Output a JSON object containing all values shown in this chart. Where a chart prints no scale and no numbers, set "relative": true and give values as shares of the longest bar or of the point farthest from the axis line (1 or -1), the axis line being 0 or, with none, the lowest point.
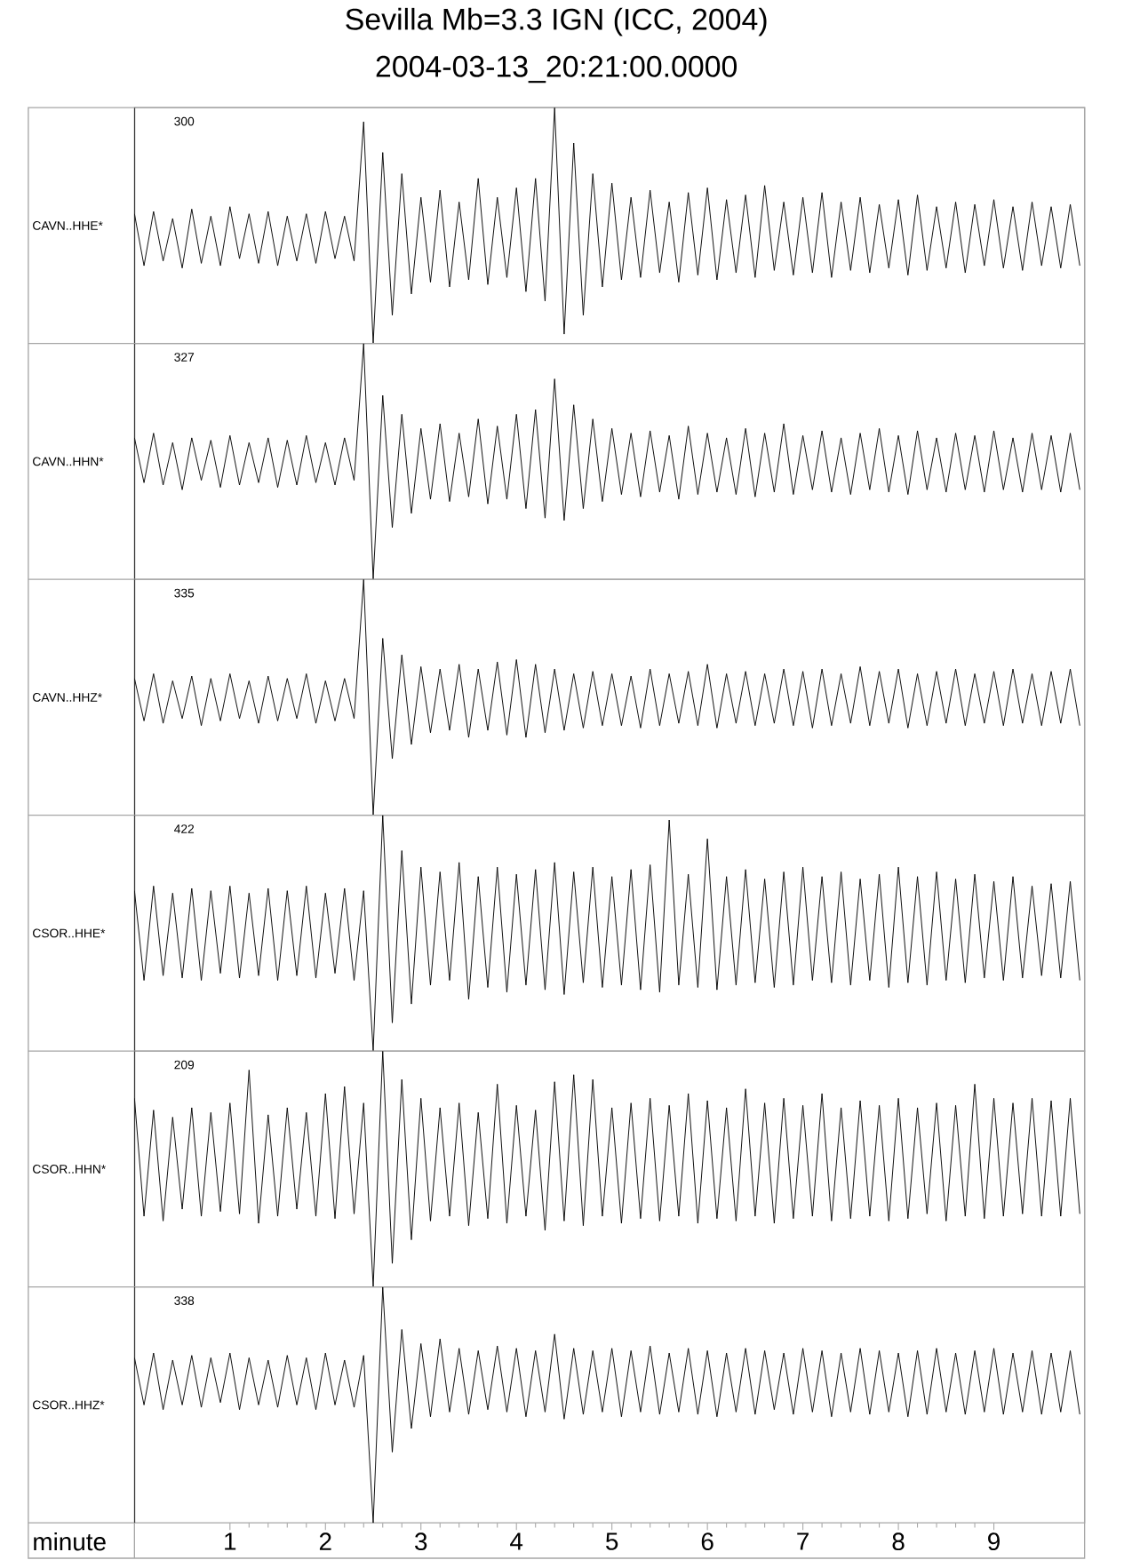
{
  "chart_data": [
    {
      "type": "line",
      "relative": true,
      "title": "Sevilla Mb=3.3 IGN (ICC, 2004)",
      "subtitle": "2004-03-13_20:21:00.0000",
      "ylabel": "CAVN..HHE*",
      "annotations": [
        "300"
      ],
      "color": "#000000",
      "xlim": [
        0,
        9.95
      ],
      "tick_labels": false,
      "x": [
        0,
        0.1,
        0.2,
        0.3,
        0.4,
        0.5,
        0.6,
        0.7,
        0.8,
        0.9,
        1,
        1.1,
        1.2,
        1.3,
        1.4,
        1.5,
        1.6,
        1.7,
        1.8,
        1.9,
        2,
        2.1,
        2.2,
        2.3,
        2.4,
        2.5,
        2.6,
        2.7,
        2.8,
        2.9,
        3,
        3.1,
        3.2,
        3.3,
        3.4,
        3.5,
        3.6,
        3.7,
        3.8,
        3.9,
        4,
        4.1,
        4.2,
        4.3,
        4.4,
        4.5,
        4.6,
        4.7,
        4.8,
        4.9,
        5,
        5.1,
        5.2,
        5.3,
        5.4,
        5.5,
        5.6,
        5.7,
        5.8,
        5.9,
        6,
        6.1,
        6.2,
        6.3,
        6.4,
        6.5,
        6.6,
        6.7,
        6.8,
        6.9,
        7,
        7.1,
        7.2,
        7.3,
        7.4,
        7.5,
        7.6,
        7.7,
        7.8,
        7.9,
        8,
        8.1,
        8.2,
        8.3,
        8.4,
        8.5,
        8.6,
        8.7,
        8.8,
        8.9,
        9,
        9.1,
        9.2,
        9.3,
        9.4,
        9.5,
        9.6,
        9.7,
        9.8,
        9.9
      ],
      "values": [
        0.55,
        0.33,
        0.56,
        0.35,
        0.53,
        0.32,
        0.57,
        0.34,
        0.54,
        0.33,
        0.58,
        0.36,
        0.55,
        0.34,
        0.56,
        0.33,
        0.54,
        0.35,
        0.55,
        0.34,
        0.56,
        0.36,
        0.54,
        0.35,
        0.94,
        0.0,
        0.81,
        0.12,
        0.72,
        0.21,
        0.62,
        0.26,
        0.65,
        0.24,
        0.6,
        0.27,
        0.7,
        0.25,
        0.62,
        0.28,
        0.66,
        0.22,
        0.7,
        0.18,
        1.0,
        0.04,
        0.85,
        0.12,
        0.72,
        0.24,
        0.68,
        0.27,
        0.62,
        0.28,
        0.65,
        0.3,
        0.6,
        0.26,
        0.64,
        0.29,
        0.66,
        0.27,
        0.61,
        0.3,
        0.63,
        0.28,
        0.67,
        0.31,
        0.6,
        0.29,
        0.62,
        0.3,
        0.64,
        0.28,
        0.6,
        0.31,
        0.62,
        0.3,
        0.59,
        0.32,
        0.61,
        0.29,
        0.63,
        0.31,
        0.58,
        0.32,
        0.6,
        0.3,
        0.59,
        0.33,
        0.61,
        0.32,
        0.58,
        0.31,
        0.6,
        0.33,
        0.58,
        0.32,
        0.59,
        0.33
      ]
    },
    {
      "type": "line",
      "relative": true,
      "ylabel": "CAVN..HHN*",
      "annotations": [
        "327"
      ],
      "color": "#000000",
      "xlim": [
        0,
        9.95
      ],
      "tick_labels": false,
      "x": [
        0,
        0.1,
        0.2,
        0.3,
        0.4,
        0.5,
        0.6,
        0.7,
        0.8,
        0.9,
        1,
        1.1,
        1.2,
        1.3,
        1.4,
        1.5,
        1.6,
        1.7,
        1.8,
        1.9,
        2,
        2.1,
        2.2,
        2.3,
        2.4,
        2.5,
        2.6,
        2.7,
        2.8,
        2.9,
        3,
        3.1,
        3.2,
        3.3,
        3.4,
        3.5,
        3.6,
        3.7,
        3.8,
        3.9,
        4,
        4.1,
        4.2,
        4.3,
        4.4,
        4.5,
        4.6,
        4.7,
        4.8,
        4.9,
        5,
        5.1,
        5.2,
        5.3,
        5.4,
        5.5,
        5.6,
        5.7,
        5.8,
        5.9,
        6,
        6.1,
        6.2,
        6.3,
        6.4,
        6.5,
        6.6,
        6.7,
        6.8,
        6.9,
        7,
        7.1,
        7.2,
        7.3,
        7.4,
        7.5,
        7.6,
        7.7,
        7.8,
        7.9,
        8,
        8.1,
        8.2,
        8.3,
        8.4,
        8.5,
        8.6,
        8.7,
        8.8,
        8.9,
        9,
        9.1,
        9.2,
        9.3,
        9.4,
        9.5,
        9.6,
        9.7,
        9.8,
        9.9
      ],
      "values": [
        0.6,
        0.41,
        0.62,
        0.4,
        0.58,
        0.38,
        0.6,
        0.42,
        0.59,
        0.39,
        0.61,
        0.4,
        0.58,
        0.41,
        0.6,
        0.39,
        0.59,
        0.4,
        0.61,
        0.41,
        0.58,
        0.4,
        0.6,
        0.42,
        1.0,
        0.0,
        0.78,
        0.22,
        0.7,
        0.28,
        0.64,
        0.34,
        0.66,
        0.33,
        0.62,
        0.35,
        0.68,
        0.32,
        0.65,
        0.34,
        0.7,
        0.3,
        0.72,
        0.26,
        0.85,
        0.25,
        0.74,
        0.3,
        0.68,
        0.33,
        0.64,
        0.36,
        0.62,
        0.35,
        0.63,
        0.37,
        0.61,
        0.34,
        0.65,
        0.36,
        0.62,
        0.37,
        0.6,
        0.36,
        0.64,
        0.35,
        0.62,
        0.37,
        0.66,
        0.36,
        0.61,
        0.38,
        0.63,
        0.37,
        0.6,
        0.36,
        0.62,
        0.38,
        0.64,
        0.37,
        0.61,
        0.36,
        0.63,
        0.38,
        0.6,
        0.37,
        0.62,
        0.38,
        0.61,
        0.37,
        0.63,
        0.38,
        0.6,
        0.37,
        0.62,
        0.38,
        0.61,
        0.37,
        0.62,
        0.38
      ]
    },
    {
      "type": "line",
      "relative": true,
      "ylabel": "CAVN..HHZ*",
      "annotations": [
        "335"
      ],
      "color": "#000000",
      "xlim": [
        0,
        9.95
      ],
      "tick_labels": false,
      "x": [
        0,
        0.1,
        0.2,
        0.3,
        0.4,
        0.5,
        0.6,
        0.7,
        0.8,
        0.9,
        1,
        1.1,
        1.2,
        1.3,
        1.4,
        1.5,
        1.6,
        1.7,
        1.8,
        1.9,
        2,
        2.1,
        2.2,
        2.3,
        2.4,
        2.5,
        2.6,
        2.7,
        2.8,
        2.9,
        3,
        3.1,
        3.2,
        3.3,
        3.4,
        3.5,
        3.6,
        3.7,
        3.8,
        3.9,
        4,
        4.1,
        4.2,
        4.3,
        4.4,
        4.5,
        4.6,
        4.7,
        4.8,
        4.9,
        5,
        5.1,
        5.2,
        5.3,
        5.4,
        5.5,
        5.6,
        5.7,
        5.8,
        5.9,
        6,
        6.1,
        6.2,
        6.3,
        6.4,
        6.5,
        6.6,
        6.7,
        6.8,
        6.9,
        7,
        7.1,
        7.2,
        7.3,
        7.4,
        7.5,
        7.6,
        7.7,
        7.8,
        7.9,
        8,
        8.1,
        8.2,
        8.3,
        8.4,
        8.5,
        8.6,
        8.7,
        8.8,
        8.9,
        9,
        9.1,
        9.2,
        9.3,
        9.4,
        9.5,
        9.6,
        9.7,
        9.8,
        9.9
      ],
      "values": [
        0.58,
        0.4,
        0.6,
        0.39,
        0.57,
        0.41,
        0.59,
        0.38,
        0.58,
        0.4,
        0.6,
        0.41,
        0.57,
        0.39,
        0.59,
        0.4,
        0.58,
        0.41,
        0.6,
        0.39,
        0.57,
        0.4,
        0.58,
        0.41,
        1.0,
        0.0,
        0.75,
        0.24,
        0.68,
        0.3,
        0.63,
        0.35,
        0.62,
        0.36,
        0.64,
        0.33,
        0.62,
        0.36,
        0.65,
        0.34,
        0.66,
        0.33,
        0.64,
        0.35,
        0.62,
        0.36,
        0.6,
        0.37,
        0.61,
        0.38,
        0.6,
        0.38,
        0.59,
        0.37,
        0.62,
        0.38,
        0.6,
        0.39,
        0.61,
        0.38,
        0.64,
        0.37,
        0.6,
        0.39,
        0.61,
        0.38,
        0.6,
        0.39,
        0.62,
        0.38,
        0.61,
        0.37,
        0.62,
        0.38,
        0.6,
        0.39,
        0.63,
        0.38,
        0.61,
        0.39,
        0.62,
        0.37,
        0.6,
        0.38,
        0.61,
        0.39,
        0.62,
        0.38,
        0.6,
        0.39,
        0.61,
        0.38,
        0.62,
        0.39,
        0.6,
        0.38,
        0.61,
        0.39,
        0.62,
        0.38
      ]
    },
    {
      "type": "line",
      "relative": true,
      "ylabel": "CSOR..HHE*",
      "annotations": [
        "422"
      ],
      "color": "#000000",
      "xlim": [
        0,
        9.95
      ],
      "tick_labels": false,
      "x": [
        0,
        0.1,
        0.2,
        0.3,
        0.4,
        0.5,
        0.6,
        0.7,
        0.8,
        0.9,
        1,
        1.1,
        1.2,
        1.3,
        1.4,
        1.5,
        1.6,
        1.7,
        1.8,
        1.9,
        2,
        2.1,
        2.2,
        2.3,
        2.4,
        2.5,
        2.6,
        2.7,
        2.8,
        2.9,
        3,
        3.1,
        3.2,
        3.3,
        3.4,
        3.5,
        3.6,
        3.7,
        3.8,
        3.9,
        4,
        4.1,
        4.2,
        4.3,
        4.4,
        4.5,
        4.6,
        4.7,
        4.8,
        4.9,
        5,
        5.1,
        5.2,
        5.3,
        5.4,
        5.5,
        5.6,
        5.7,
        5.8,
        5.9,
        6,
        6.1,
        6.2,
        6.3,
        6.4,
        6.5,
        6.6,
        6.7,
        6.8,
        6.9,
        7,
        7.1,
        7.2,
        7.3,
        7.4,
        7.5,
        7.6,
        7.7,
        7.8,
        7.9,
        8,
        8.1,
        8.2,
        8.3,
        8.4,
        8.5,
        8.6,
        8.7,
        8.8,
        8.9,
        9,
        9.1,
        9.2,
        9.3,
        9.4,
        9.5,
        9.6,
        9.7,
        9.8,
        9.9
      ],
      "values": [
        0.68,
        0.3,
        0.7,
        0.32,
        0.67,
        0.31,
        0.69,
        0.3,
        0.68,
        0.33,
        0.7,
        0.31,
        0.67,
        0.32,
        0.69,
        0.3,
        0.68,
        0.32,
        0.7,
        0.31,
        0.67,
        0.33,
        0.69,
        0.3,
        0.68,
        0.0,
        1.0,
        0.12,
        0.85,
        0.2,
        0.78,
        0.28,
        0.76,
        0.3,
        0.8,
        0.22,
        0.74,
        0.27,
        0.78,
        0.25,
        0.75,
        0.28,
        0.77,
        0.26,
        0.8,
        0.24,
        0.76,
        0.29,
        0.78,
        0.27,
        0.74,
        0.28,
        0.77,
        0.26,
        0.79,
        0.25,
        0.98,
        0.28,
        0.75,
        0.27,
        0.9,
        0.26,
        0.74,
        0.28,
        0.77,
        0.29,
        0.73,
        0.27,
        0.76,
        0.28,
        0.78,
        0.3,
        0.74,
        0.29,
        0.76,
        0.28,
        0.73,
        0.3,
        0.75,
        0.27,
        0.78,
        0.29,
        0.74,
        0.28,
        0.76,
        0.3,
        0.73,
        0.29,
        0.75,
        0.31,
        0.72,
        0.3,
        0.74,
        0.31,
        0.7,
        0.32,
        0.71,
        0.31,
        0.72,
        0.3
      ]
    },
    {
      "type": "line",
      "relative": true,
      "ylabel": "CSOR..HHN*",
      "annotations": [
        "209"
      ],
      "color": "#000000",
      "xlim": [
        0,
        9.95
      ],
      "tick_labels": false,
      "x": [
        0,
        0.1,
        0.2,
        0.3,
        0.4,
        0.5,
        0.6,
        0.7,
        0.8,
        0.9,
        1,
        1.1,
        1.2,
        1.3,
        1.4,
        1.5,
        1.6,
        1.7,
        1.8,
        1.9,
        2,
        2.1,
        2.2,
        2.3,
        2.4,
        2.5,
        2.6,
        2.7,
        2.8,
        2.9,
        3,
        3.1,
        3.2,
        3.3,
        3.4,
        3.5,
        3.6,
        3.7,
        3.8,
        3.9,
        4,
        4.1,
        4.2,
        4.3,
        4.4,
        4.5,
        4.6,
        4.7,
        4.8,
        4.9,
        5,
        5.1,
        5.2,
        5.3,
        5.4,
        5.5,
        5.6,
        5.7,
        5.8,
        5.9,
        6,
        6.1,
        6.2,
        6.3,
        6.4,
        6.5,
        6.6,
        6.7,
        6.8,
        6.9,
        7,
        7.1,
        7.2,
        7.3,
        7.4,
        7.5,
        7.6,
        7.7,
        7.8,
        7.9,
        8,
        8.1,
        8.2,
        8.3,
        8.4,
        8.5,
        8.6,
        8.7,
        8.8,
        8.9,
        9,
        9.1,
        9.2,
        9.3,
        9.4,
        9.5,
        9.6,
        9.7,
        9.8,
        9.9
      ],
      "values": [
        0.8,
        0.3,
        0.75,
        0.28,
        0.72,
        0.33,
        0.76,
        0.3,
        0.74,
        0.32,
        0.78,
        0.31,
        0.92,
        0.27,
        0.73,
        0.3,
        0.76,
        0.33,
        0.74,
        0.3,
        0.82,
        0.29,
        0.85,
        0.31,
        0.78,
        0.0,
        1.0,
        0.1,
        0.88,
        0.2,
        0.8,
        0.28,
        0.76,
        0.3,
        0.78,
        0.26,
        0.74,
        0.29,
        0.86,
        0.27,
        0.77,
        0.3,
        0.75,
        0.24,
        0.87,
        0.28,
        0.9,
        0.26,
        0.88,
        0.3,
        0.76,
        0.27,
        0.78,
        0.29,
        0.8,
        0.28,
        0.77,
        0.3,
        0.82,
        0.27,
        0.79,
        0.29,
        0.76,
        0.28,
        0.84,
        0.3,
        0.78,
        0.27,
        0.8,
        0.29,
        0.77,
        0.3,
        0.82,
        0.28,
        0.76,
        0.29,
        0.79,
        0.3,
        0.77,
        0.28,
        0.8,
        0.29,
        0.76,
        0.31,
        0.78,
        0.28,
        0.77,
        0.3,
        0.86,
        0.29,
        0.8,
        0.3,
        0.78,
        0.31,
        0.8,
        0.3,
        0.79,
        0.3,
        0.8,
        0.31
      ]
    },
    {
      "type": "line",
      "relative": true,
      "ylabel": "CSOR..HHZ*",
      "annotations": [
        "338"
      ],
      "color": "#000000",
      "xlim": [
        0,
        9.95
      ],
      "tick_labels": "x",
      "xlabel": "minute",
      "xticks": [
        1,
        2,
        3,
        4,
        5,
        6,
        7,
        8,
        9
      ],
      "x": [
        0,
        0.1,
        0.2,
        0.3,
        0.4,
        0.5,
        0.6,
        0.7,
        0.8,
        0.9,
        1,
        1.1,
        1.2,
        1.3,
        1.4,
        1.5,
        1.6,
        1.7,
        1.8,
        1.9,
        2,
        2.1,
        2.2,
        2.3,
        2.4,
        2.5,
        2.6,
        2.7,
        2.8,
        2.9,
        3,
        3.1,
        3.2,
        3.3,
        3.4,
        3.5,
        3.6,
        3.7,
        3.8,
        3.9,
        4,
        4.1,
        4.2,
        4.3,
        4.4,
        4.5,
        4.6,
        4.7,
        4.8,
        4.9,
        5,
        5.1,
        5.2,
        5.3,
        5.4,
        5.5,
        5.6,
        5.7,
        5.8,
        5.9,
        6,
        6.1,
        6.2,
        6.3,
        6.4,
        6.5,
        6.6,
        6.7,
        6.8,
        6.9,
        7,
        7.1,
        7.2,
        7.3,
        7.4,
        7.5,
        7.6,
        7.7,
        7.8,
        7.9,
        8,
        8.1,
        8.2,
        8.3,
        8.4,
        8.5,
        8.6,
        8.7,
        8.8,
        8.9,
        9,
        9.1,
        9.2,
        9.3,
        9.4,
        9.5,
        9.6,
        9.7,
        9.8,
        9.9
      ],
      "values": [
        0.7,
        0.5,
        0.72,
        0.48,
        0.69,
        0.5,
        0.71,
        0.49,
        0.7,
        0.51,
        0.72,
        0.48,
        0.7,
        0.5,
        0.69,
        0.49,
        0.71,
        0.5,
        0.7,
        0.48,
        0.72,
        0.5,
        0.69,
        0.49,
        0.71,
        0.0,
        1.0,
        0.3,
        0.82,
        0.4,
        0.76,
        0.45,
        0.78,
        0.47,
        0.74,
        0.46,
        0.73,
        0.48,
        0.75,
        0.47,
        0.74,
        0.45,
        0.73,
        0.47,
        0.8,
        0.44,
        0.74,
        0.46,
        0.73,
        0.47,
        0.74,
        0.45,
        0.73,
        0.47,
        0.75,
        0.46,
        0.72,
        0.47,
        0.74,
        0.46,
        0.73,
        0.45,
        0.72,
        0.47,
        0.74,
        0.46,
        0.73,
        0.48,
        0.72,
        0.46,
        0.74,
        0.47,
        0.73,
        0.45,
        0.72,
        0.47,
        0.74,
        0.46,
        0.73,
        0.47,
        0.72,
        0.45,
        0.73,
        0.46,
        0.74,
        0.47,
        0.72,
        0.46,
        0.73,
        0.47,
        0.74,
        0.46,
        0.72,
        0.47,
        0.73,
        0.46,
        0.72,
        0.47,
        0.73,
        0.46
      ]
    }
  ]
}
